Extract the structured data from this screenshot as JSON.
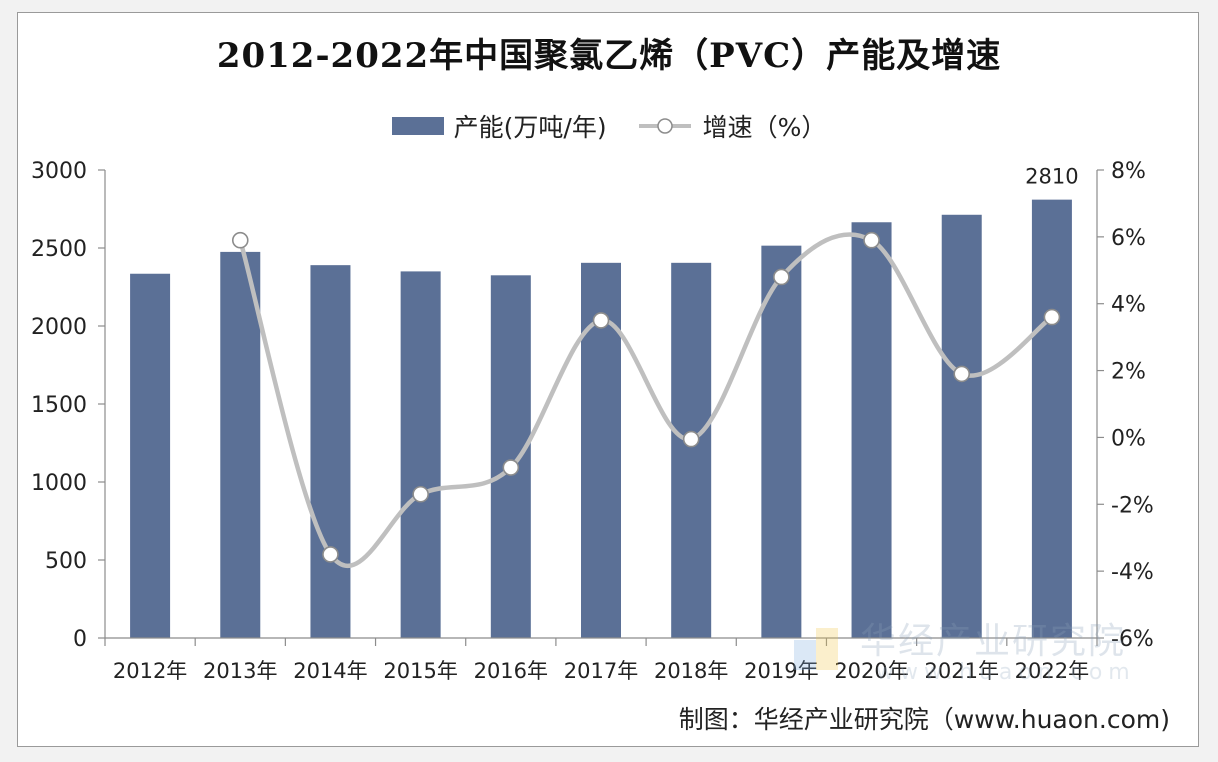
{
  "title": "2012-2022年中国聚氯乙烯（PVC）产能及增速",
  "legend": {
    "bar_label": "产能(万吨/年)",
    "line_label": "增速（%）"
  },
  "footer": "制图：华经产业研究院（www.huaon.com)",
  "watermark": {
    "text": "华经产业研究院",
    "url": "www.huaon.com"
  },
  "colors": {
    "bar": "#5b7096",
    "line": "#bfbfbf",
    "marker_fill": "#ffffff",
    "marker_stroke": "#8c8c8c"
  },
  "chart_data": {
    "type": "bar+line",
    "categories": [
      "2012年",
      "2013年",
      "2014年",
      "2015年",
      "2016年",
      "2017年",
      "2018年",
      "2019年",
      "2020年",
      "2021年",
      "2022年"
    ],
    "series": [
      {
        "name": "产能(万吨/年)",
        "type": "bar",
        "axis": "left",
        "values": [
          2335,
          2475,
          2390,
          2350,
          2325,
          2405,
          2405,
          2515,
          2665,
          2713,
          2810
        ]
      },
      {
        "name": "增速（%）",
        "type": "line",
        "axis": "right",
        "values": [
          null,
          5.9,
          -3.5,
          -1.7,
          -0.9,
          3.5,
          -0.05,
          4.8,
          5.9,
          1.9,
          3.6
        ]
      }
    ],
    "data_labels": [
      {
        "series": 0,
        "index": 10,
        "text": "2810"
      }
    ],
    "left_axis": {
      "ticks": [
        "0",
        "500",
        "1000",
        "1500",
        "2000",
        "2500",
        "3000"
      ],
      "min": 0,
      "max": 3000,
      "step": 500
    },
    "right_axis": {
      "ticks": [
        "-6%",
        "-4%",
        "-2%",
        "0%",
        "2%",
        "4%",
        "6%",
        "8%"
      ],
      "min": -6,
      "max": 8,
      "step": 2
    },
    "grid": false,
    "legend_position": "top-center"
  }
}
